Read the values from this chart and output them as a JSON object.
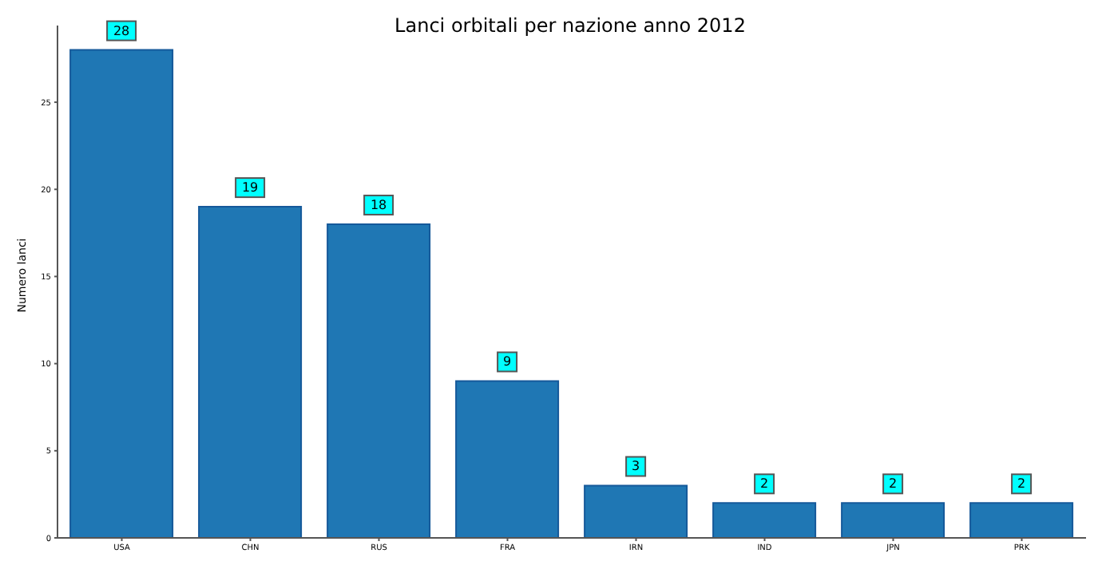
{
  "chart_data": {
    "type": "bar",
    "title": "Lanci orbitali per nazione anno 2012",
    "ylabel": "Numero lanci",
    "categories": [
      "USA",
      "CHN",
      "RUS",
      "FRA",
      "IRN",
      "IND",
      "JPN",
      "PRK"
    ],
    "values": [
      28,
      19,
      18,
      9,
      3,
      2,
      2,
      2
    ],
    "color": "#1f77b4",
    "ylim": [
      0,
      29.4
    ],
    "yticks": [
      0,
      5,
      10,
      15,
      20,
      25
    ],
    "data_labels": true
  }
}
